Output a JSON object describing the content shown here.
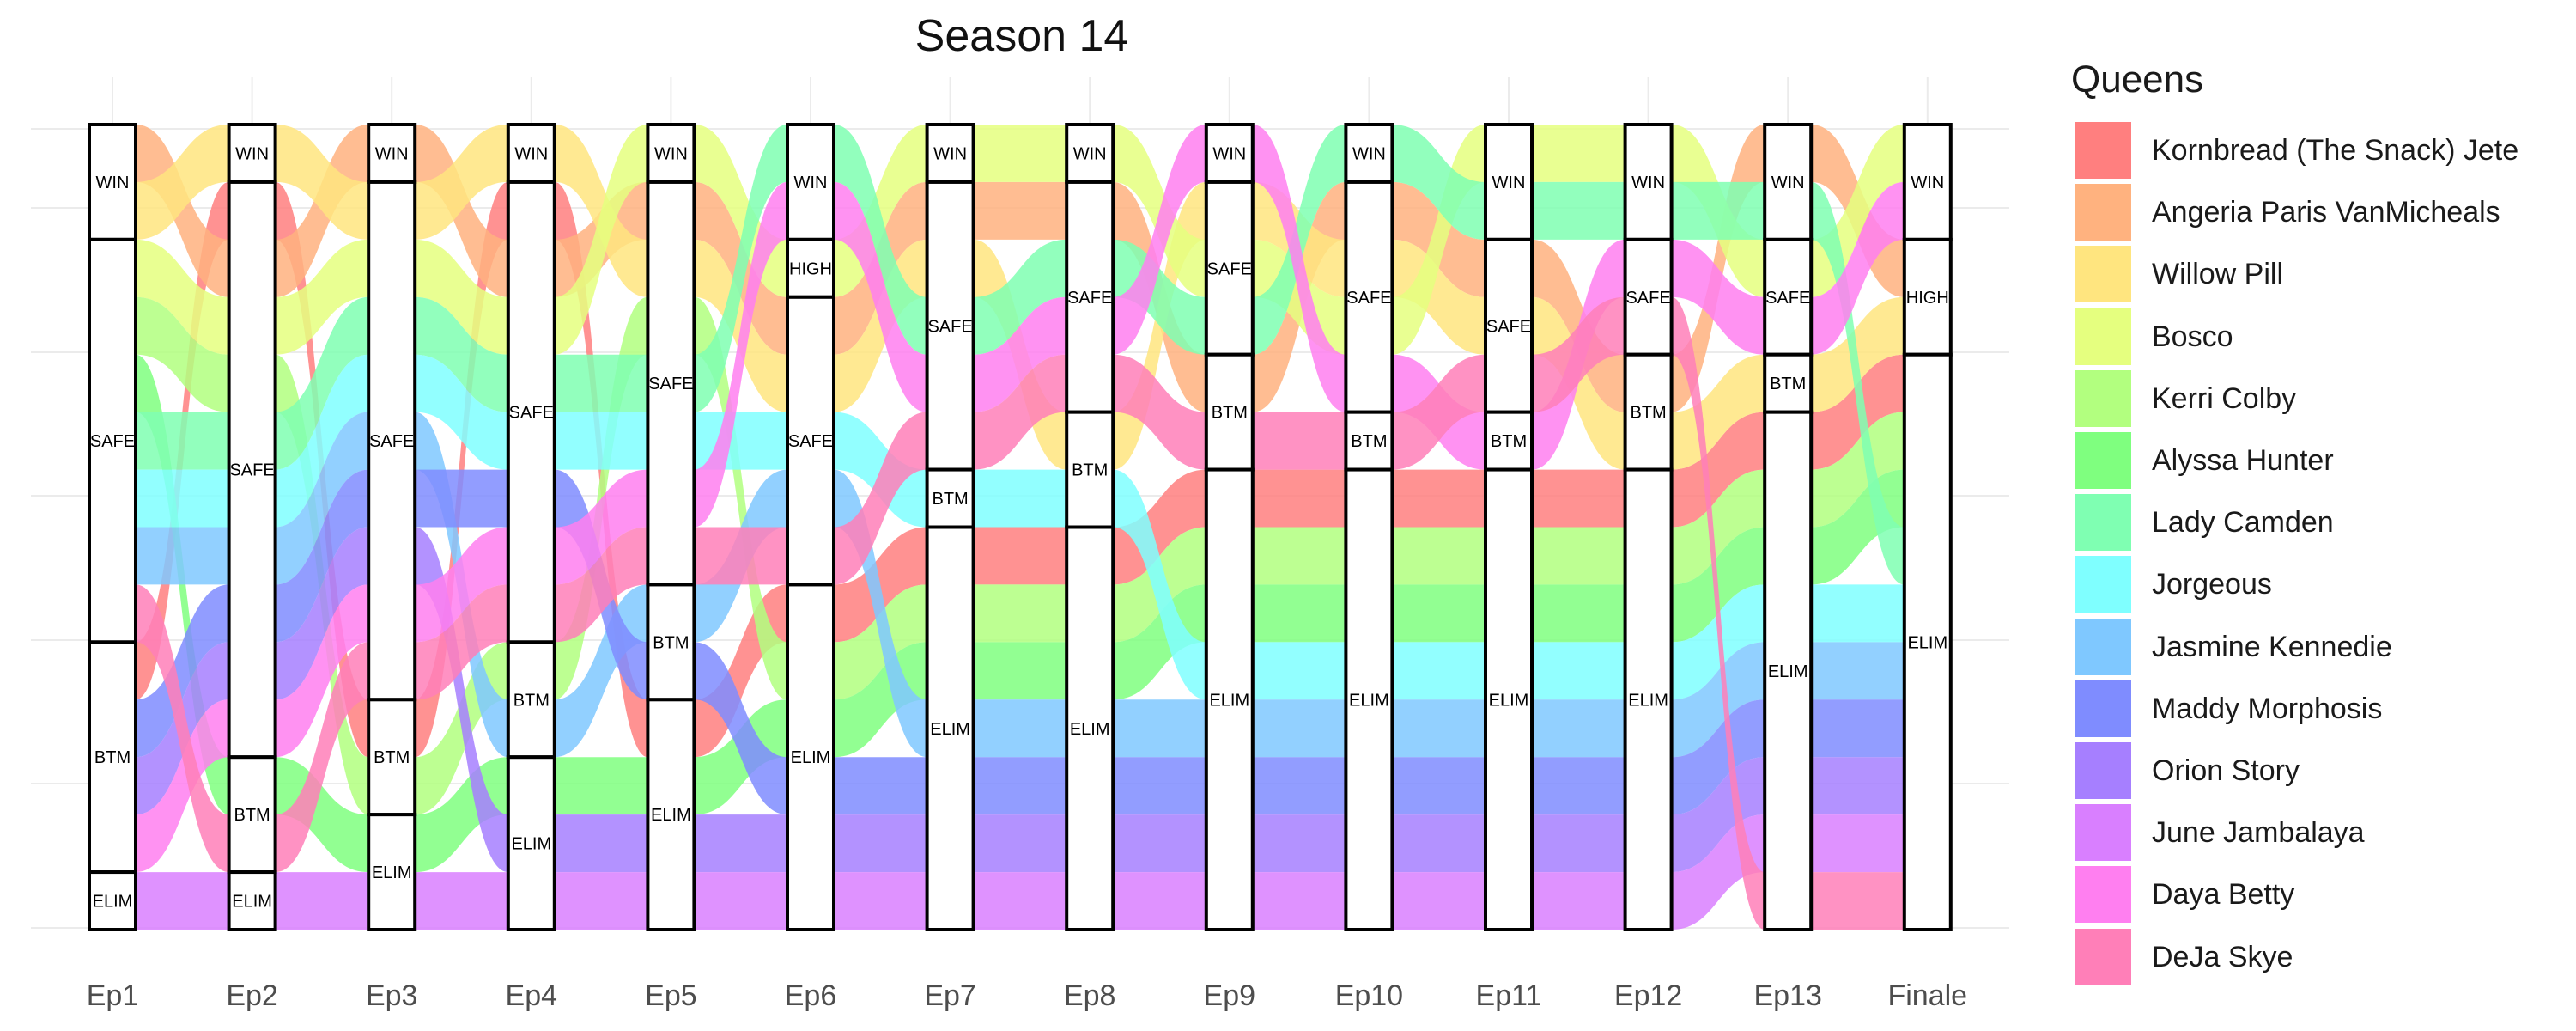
{
  "chart_data": {
    "type": "alluvial",
    "title": "Season 14",
    "legend_title": "Queens",
    "legend_position": "right",
    "grid": true,
    "episodes": [
      "Ep1",
      "Ep2",
      "Ep3",
      "Ep4",
      "Ep5",
      "Ep6",
      "Ep7",
      "Ep8",
      "Ep9",
      "Ep10",
      "Ep11",
      "Ep12",
      "Ep13",
      "Finale"
    ],
    "queens": [
      {
        "name": "Kornbread (The Snack) Jete",
        "color": "#FF7F7F"
      },
      {
        "name": "Angeria Paris VanMicheals",
        "color": "#FFB27F"
      },
      {
        "name": "Willow Pill",
        "color": "#FFE57F"
      },
      {
        "name": "Bosco",
        "color": "#E5FF7F"
      },
      {
        "name": "Kerri Colby",
        "color": "#B2FF7F"
      },
      {
        "name": "Alyssa Hunter",
        "color": "#7FFF7F"
      },
      {
        "name": "Lady Camden",
        "color": "#7FFFB2"
      },
      {
        "name": "Jorgeous",
        "color": "#7FFFFF"
      },
      {
        "name": "Jasmine Kennedie",
        "color": "#7FC8FF"
      },
      {
        "name": "Maddy Morphosis",
        "color": "#7F8CFF"
      },
      {
        "name": "Orion Story",
        "color": "#A67FFF"
      },
      {
        "name": "June Jambalaya",
        "color": "#D97FFF"
      },
      {
        "name": "Daya Betty",
        "color": "#FF7FF0"
      },
      {
        "name": "DeJa Skye",
        "color": "#FF7FB8"
      }
    ],
    "status_order": [
      "WIN",
      "HIGH",
      "SAFE",
      "BTM",
      "ELIM"
    ],
    "placements": [
      [
        "BTM",
        "SAFE",
        "BTM",
        "SAFE",
        "ELIM",
        "ELIM",
        "ELIM",
        "ELIM",
        "ELIM",
        "ELIM",
        "ELIM",
        "ELIM",
        "ELIM",
        "ELIM"
      ],
      [
        "WIN",
        "SAFE",
        "WIN",
        "SAFE",
        "SAFE",
        "SAFE",
        "SAFE",
        "SAFE",
        "BTM",
        "SAFE",
        "SAFE",
        "BTM",
        "WIN",
        "HIGH"
      ],
      [
        "WIN",
        "WIN",
        "SAFE",
        "WIN",
        "SAFE",
        "SAFE",
        "SAFE",
        "BTM",
        "SAFE",
        "SAFE",
        "SAFE",
        "BTM",
        "BTM",
        "HIGH"
      ],
      [
        "SAFE",
        "SAFE",
        "SAFE",
        "SAFE",
        "WIN",
        "HIGH",
        "WIN",
        "WIN",
        "SAFE",
        "SAFE",
        "WIN",
        "WIN",
        "SAFE",
        "WIN"
      ],
      [
        "SAFE",
        "SAFE",
        "BTM",
        "BTM",
        "SAFE",
        "ELIM",
        "ELIM",
        "ELIM",
        "ELIM",
        "ELIM",
        "ELIM",
        "ELIM",
        "ELIM",
        "ELIM"
      ],
      [
        "SAFE",
        "BTM",
        "ELIM",
        "ELIM",
        "ELIM",
        "ELIM",
        "ELIM",
        "ELIM",
        "ELIM",
        "ELIM",
        "ELIM",
        "ELIM",
        "ELIM",
        "ELIM"
      ],
      [
        "SAFE",
        "SAFE",
        "SAFE",
        "SAFE",
        "SAFE",
        "WIN",
        "SAFE",
        "SAFE",
        "SAFE",
        "WIN",
        "WIN",
        "WIN",
        "WIN",
        "ELIM"
      ],
      [
        "SAFE",
        "SAFE",
        "SAFE",
        "SAFE",
        "SAFE",
        "SAFE",
        "BTM",
        "BTM",
        "ELIM",
        "ELIM",
        "ELIM",
        "ELIM",
        "ELIM",
        "ELIM"
      ],
      [
        "SAFE",
        "SAFE",
        "SAFE",
        "BTM",
        "BTM",
        "SAFE",
        "ELIM",
        "ELIM",
        "ELIM",
        "ELIM",
        "ELIM",
        "ELIM",
        "ELIM",
        "ELIM"
      ],
      [
        "BTM",
        "SAFE",
        "SAFE",
        "SAFE",
        "BTM",
        "ELIM",
        "ELIM",
        "ELIM",
        "ELIM",
        "ELIM",
        "ELIM",
        "ELIM",
        "ELIM",
        "ELIM"
      ],
      [
        "BTM",
        "SAFE",
        "SAFE",
        "ELIM",
        "ELIM",
        "ELIM",
        "ELIM",
        "ELIM",
        "ELIM",
        "ELIM",
        "ELIM",
        "ELIM",
        "ELIM",
        "ELIM"
      ],
      [
        "ELIM",
        "ELIM",
        "ELIM",
        "ELIM",
        "ELIM",
        "ELIM",
        "ELIM",
        "ELIM",
        "ELIM",
        "ELIM",
        "ELIM",
        "ELIM",
        "ELIM",
        "ELIM"
      ],
      [
        "BTM",
        "SAFE",
        "SAFE",
        "SAFE",
        "SAFE",
        "WIN",
        "SAFE",
        "SAFE",
        "WIN",
        "SAFE",
        "BTM",
        "SAFE",
        "SAFE",
        "WIN"
      ],
      [
        "SAFE",
        "BTM",
        "SAFE",
        "SAFE",
        "SAFE",
        "SAFE",
        "SAFE",
        "SAFE",
        "BTM",
        "BTM",
        "SAFE",
        "SAFE",
        "ELIM",
        "ELIM"
      ]
    ]
  }
}
